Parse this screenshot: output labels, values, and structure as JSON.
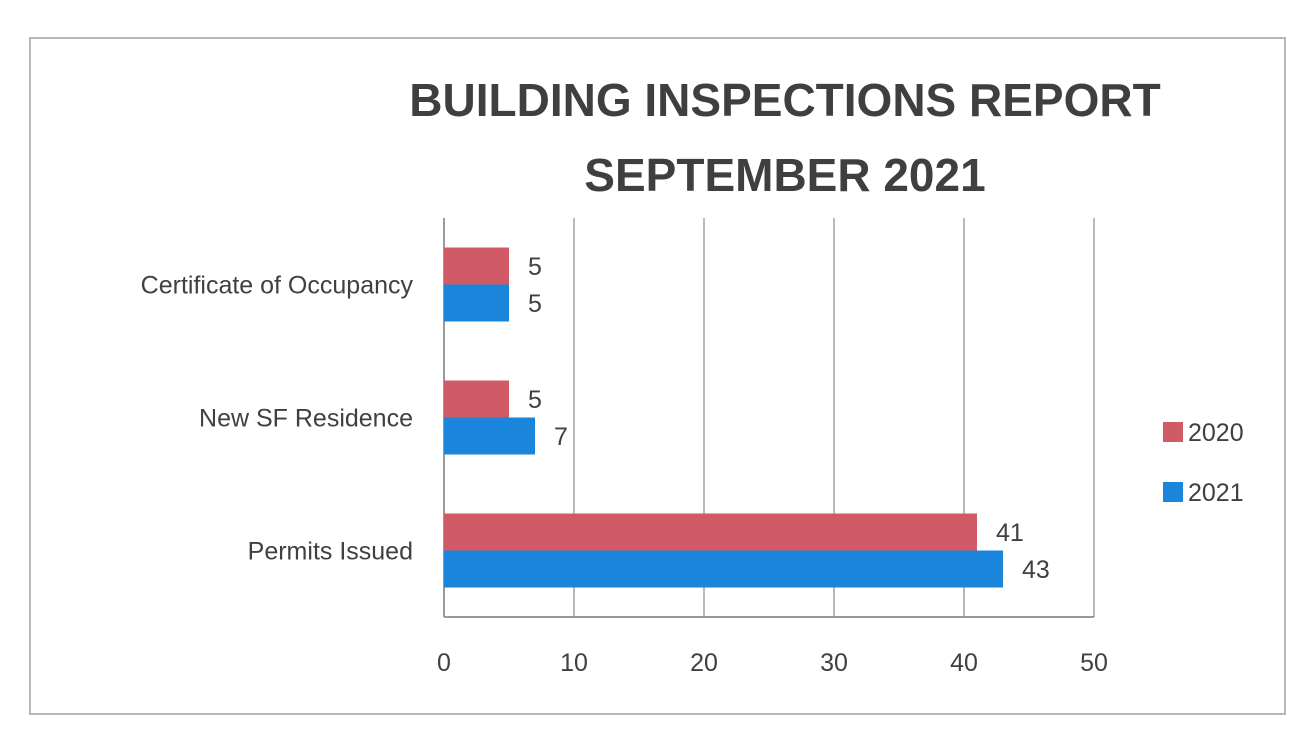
{
  "chart_data": {
    "type": "bar",
    "orientation": "horizontal",
    "title_lines": [
      "BUILDING INSPECTIONS REPORT",
      "SEPTEMBER 2021"
    ],
    "categories": [
      "Certificate of Occupancy",
      "New SF Residence",
      "Permits Issued"
    ],
    "series": [
      {
        "name": "2020",
        "values": [
          5,
          5,
          41
        ],
        "color": "#d05a66"
      },
      {
        "name": "2021",
        "values": [
          5,
          7,
          43
        ],
        "color": "#1a85db"
      }
    ],
    "xlim": [
      0,
      50
    ],
    "xticks": [
      0,
      10,
      20,
      30,
      40,
      50
    ],
    "grid": true,
    "legend_position": "right"
  }
}
